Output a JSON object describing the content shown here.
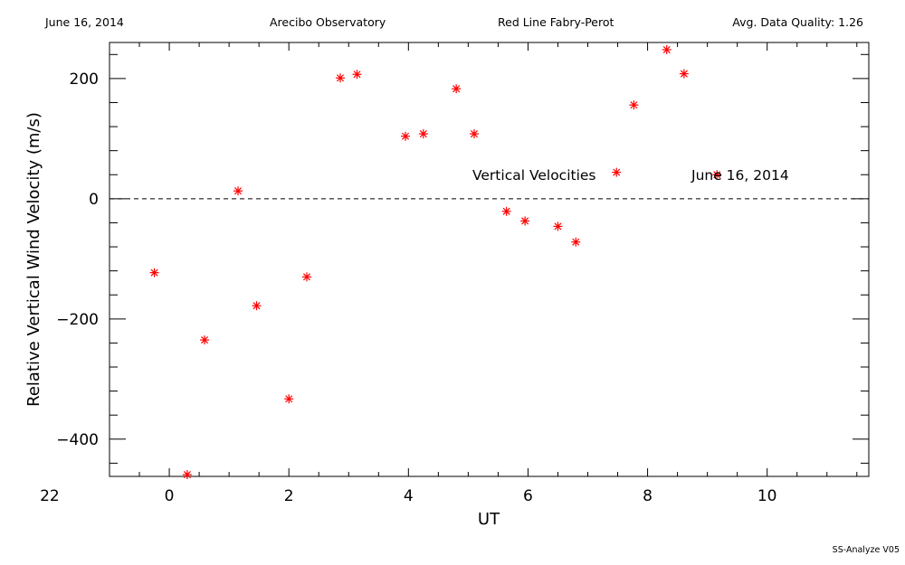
{
  "header": {
    "date": "June 16, 2014",
    "observatory": "Arecibo Observatory",
    "instrument": "Red Line Fabry-Perot",
    "quality": "Avg. Data Quality: 1.26"
  },
  "footer": {
    "version": "SS-Analyze V05"
  },
  "chart_data": {
    "type": "scatter",
    "xlabel": "UT",
    "ylabel": "Relative Vertical Wind Velocity (m/s)",
    "xlim": [
      -25,
      -12.3
    ],
    "ylim": [
      -462,
      260
    ],
    "x_ticks": [
      {
        "value": -26,
        "label": "22"
      },
      {
        "value": -24,
        "label": "0"
      },
      {
        "value": -22,
        "label": "2"
      },
      {
        "value": -20,
        "label": "4"
      },
      {
        "value": -18,
        "label": "6"
      },
      {
        "value": -16,
        "label": "8"
      },
      {
        "value": -14,
        "label": "10"
      }
    ],
    "y_ticks": [
      {
        "value": 200,
        "label": "200"
      },
      {
        "value": 0,
        "label": "0"
      },
      {
        "value": -200,
        "label": "−200"
      },
      {
        "value": -400,
        "label": "−400"
      }
    ],
    "annotations": [
      "Vertical Velocities",
      "June 16, 2014"
    ],
    "marker_color": "#ff0000",
    "series": [
      {
        "points": [
          {
            "x": "-0.25",
            "y": -123
          },
          {
            "x": "0.30",
            "y": -459
          },
          {
            "x": "0.59",
            "y": -235
          },
          {
            "x": "1.15",
            "y": 13
          },
          {
            "x": "1.46",
            "y": -178
          },
          {
            "x": "2.00",
            "y": -333
          },
          {
            "x": "2.30",
            "y": -130
          },
          {
            "x": "2.86",
            "y": 201
          },
          {
            "x": "3.14",
            "y": 207
          },
          {
            "x": "3.95",
            "y": 104
          },
          {
            "x": "4.25",
            "y": 108
          },
          {
            "x": "4.80",
            "y": 183
          },
          {
            "x": "5.10",
            "y": 108
          },
          {
            "x": "5.64",
            "y": -21
          },
          {
            "x": "5.95",
            "y": -37
          },
          {
            "x": "6.50",
            "y": -46
          },
          {
            "x": "6.80",
            "y": -72
          },
          {
            "x": "7.48",
            "y": 44
          },
          {
            "x": "7.77",
            "y": 156
          },
          {
            "x": "8.32",
            "y": 248
          },
          {
            "x": "8.61",
            "y": 208
          },
          {
            "x": "9.16",
            "y": 40
          }
        ]
      }
    ]
  }
}
